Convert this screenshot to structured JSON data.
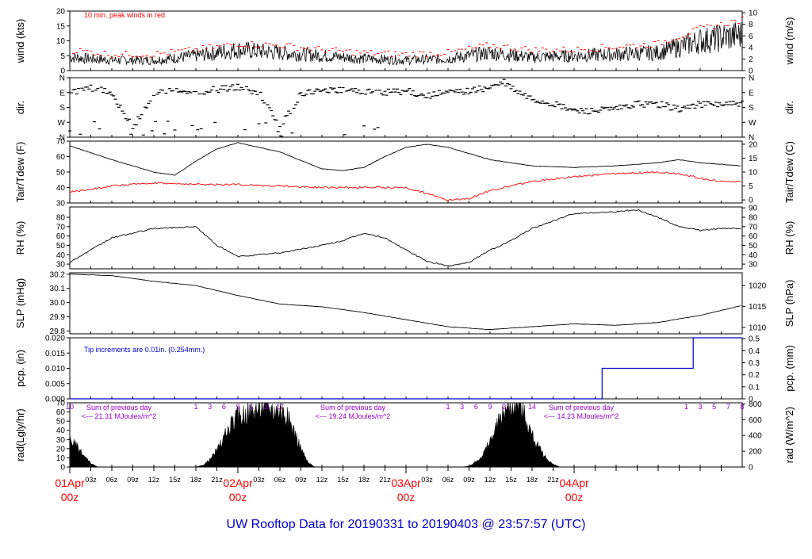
{
  "title": "UW Rooftop Data for 20190331  to  20190403 @ 23:57:57  (UTC)",
  "colors": {
    "title": "#0000cc",
    "peak": "#ff0000",
    "dew": "#ff0000",
    "pcp": "#0000cc",
    "note_rad": "#9900cc",
    "date": "#ff0000",
    "trace": "#000000"
  },
  "chart_data": [
    {
      "type": "line",
      "panel": "wind",
      "ylabel_left": "wind (kts)",
      "ylabel_right": "wind (m/s)",
      "ylim": [
        0,
        20
      ],
      "yticks_left": [
        "0",
        "5",
        "10",
        "15",
        "20"
      ],
      "yticks_right": [
        "0",
        "2",
        "4",
        "6",
        "8",
        "10"
      ],
      "annotation": "10 min. peak winds in red",
      "series": [
        {
          "role": "wind",
          "x": [
            0,
            6,
            12,
            18,
            24,
            30,
            36,
            42,
            48,
            54,
            60,
            66,
            72,
            78,
            84,
            90,
            96
          ],
          "y": [
            4.5,
            3.5,
            3.5,
            5,
            7,
            6,
            5,
            4,
            3.5,
            4,
            6,
            4.5,
            5,
            5.5,
            6,
            10,
            12
          ]
        },
        {
          "role": "peak",
          "x": [
            0,
            6,
            12,
            18,
            24,
            30,
            36,
            42,
            48,
            54,
            60,
            66,
            72,
            78,
            84,
            90,
            96
          ],
          "y": [
            7,
            5.5,
            5.5,
            7,
            9,
            8.5,
            7,
            6,
            5.5,
            6,
            8.5,
            7,
            7,
            8,
            9,
            14,
            17
          ]
        }
      ]
    },
    {
      "type": "scatter",
      "panel": "dir",
      "ylabel_left": "dir.",
      "ylabel_right": "dir.",
      "yticks_left": [
        "N",
        "W",
        "S",
        "E",
        "N"
      ],
      "yticks_right": [
        "N",
        "W",
        "S",
        "E",
        "N"
      ],
      "ylim": [
        0,
        360
      ],
      "x": [
        0,
        3,
        6,
        9,
        12,
        15,
        18,
        21,
        24,
        27,
        30,
        33,
        36,
        39,
        42,
        45,
        48,
        51,
        54,
        57,
        60,
        62,
        64,
        66,
        69,
        72,
        75,
        78,
        81,
        84,
        87,
        90,
        93,
        96
      ],
      "y": [
        270,
        300,
        270,
        60,
        260,
        280,
        270,
        290,
        300,
        270,
        60,
        260,
        290,
        280,
        280,
        270,
        280,
        250,
        270,
        280,
        300,
        330,
        270,
        230,
        200,
        160,
        160,
        170,
        200,
        200,
        170,
        200,
        200,
        200
      ]
    },
    {
      "type": "line",
      "panel": "temp",
      "ylabel_left": "Tair/Tdew (F)",
      "ylabel_right": "Tair/Tdew (C)",
      "ylim": [
        30,
        70
      ],
      "yticks_left": [
        "30",
        "40",
        "50",
        "60",
        "70"
      ],
      "yticks_right": [
        "0",
        "5",
        "10",
        "15",
        "20"
      ],
      "series": [
        {
          "role": "tair",
          "x": [
            0,
            6,
            12,
            15,
            18,
            21,
            24,
            27,
            30,
            36,
            39,
            42,
            45,
            48,
            51,
            54,
            60,
            66,
            72,
            78,
            84,
            87,
            90,
            93,
            96
          ],
          "y": [
            67,
            58,
            50,
            48,
            57,
            65,
            69,
            66,
            63,
            52,
            51,
            53,
            60,
            66,
            68,
            66,
            58,
            54,
            53,
            54,
            56,
            58,
            56,
            55,
            54
          ]
        },
        {
          "role": "tdew",
          "x": [
            0,
            6,
            12,
            18,
            24,
            30,
            36,
            42,
            48,
            51,
            54,
            57,
            60,
            66,
            72,
            78,
            84,
            87,
            90,
            93,
            96
          ],
          "y": [
            37,
            41,
            43,
            42,
            42,
            41,
            40,
            40,
            40,
            36,
            32,
            33,
            38,
            44,
            47,
            49,
            50,
            49,
            46,
            44,
            44
          ]
        }
      ]
    },
    {
      "type": "line",
      "panel": "rh",
      "ylabel_left": "RH (%)",
      "ylabel_right": "RH (%)",
      "ylim": [
        25,
        91
      ],
      "yticks_left": [
        "30",
        "40",
        "50",
        "60",
        "70",
        "80"
      ],
      "yticks_right": [
        "30",
        "40",
        "50",
        "60",
        "70",
        "80",
        "90"
      ],
      "x": [
        0,
        6,
        12,
        18,
        21,
        24,
        30,
        36,
        39,
        42,
        45,
        48,
        51,
        54,
        57,
        60,
        63,
        66,
        72,
        78,
        81,
        84,
        87,
        90,
        93,
        96
      ],
      "y": [
        32,
        58,
        68,
        70,
        50,
        38,
        42,
        50,
        55,
        63,
        58,
        45,
        33,
        28,
        32,
        45,
        55,
        68,
        84,
        86,
        88,
        80,
        70,
        66,
        68,
        68
      ]
    },
    {
      "type": "line",
      "panel": "slp",
      "ylabel_left": "SLP (inHg)",
      "ylabel_right": "SLP (hPa)",
      "ylim": [
        29.78,
        30.21
      ],
      "yticks_left": [
        "29.8",
        "29.9",
        "30.0",
        "30.1",
        "30.2"
      ],
      "yticks_right": [
        "1010",
        "1015",
        "1020"
      ],
      "x": [
        0,
        6,
        12,
        18,
        24,
        30,
        36,
        42,
        48,
        54,
        60,
        66,
        72,
        78,
        84,
        90,
        96
      ],
      "y": [
        30.2,
        30.19,
        30.15,
        30.12,
        30.05,
        29.99,
        29.97,
        29.93,
        29.88,
        29.83,
        29.81,
        29.83,
        29.85,
        29.84,
        29.86,
        29.91,
        29.98
      ]
    },
    {
      "type": "line",
      "panel": "pcp",
      "ylabel_left": "pcp. (in)",
      "ylabel_right": "pcp. (mm)",
      "ylim": [
        0,
        0.02
      ],
      "yticks_left": [
        "0.000",
        "0.005",
        "0.010",
        "0.015",
        "0.020"
      ],
      "yticks_right": [
        "0",
        "0.1",
        "0.2",
        "0.3",
        "0.4",
        "0.5"
      ],
      "annotation": "Tip increments are 0.01in. (0.254mm.)",
      "x": [
        0,
        76,
        76,
        89,
        89,
        96
      ],
      "y": [
        0,
        0,
        0.01,
        0.01,
        0.02,
        0.02
      ]
    },
    {
      "type": "area",
      "panel": "rad",
      "ylabel_left": "rad(Lgly/hr)",
      "ylabel_right": "rad (W/m^2)",
      "ylim": [
        0,
        70
      ],
      "yticks_left": [
        "0",
        "10",
        "20",
        "30",
        "40",
        "50",
        "60",
        "70"
      ],
      "yticks_right": [
        "0",
        "200",
        "400",
        "600",
        "800"
      ],
      "top_labels": [
        "10",
        "1",
        "3",
        "6",
        "9",
        "1",
        "3",
        "17",
        "1",
        "3",
        "6",
        "9",
        "2",
        "14",
        "1",
        "3",
        "5",
        "7",
        "8"
      ],
      "notes": [
        "Sum of previous day",
        "<--- 21.31 MJoules/m^2",
        "Sum of previous day",
        "<--- 19.24 MJoules/m^2",
        "Sum of previous day",
        "<--- 14.23 MJoules/m^2"
      ],
      "x": [
        0,
        1,
        2,
        3,
        4,
        18,
        19,
        20,
        21,
        22,
        23,
        24,
        25,
        26,
        27,
        28,
        29,
        30,
        31,
        32,
        33,
        34,
        35,
        36,
        37,
        38,
        39,
        40,
        41,
        42,
        43,
        44,
        45,
        46,
        47,
        48,
        49,
        50,
        51,
        52,
        53,
        54,
        55,
        56,
        57,
        58,
        59,
        60,
        61,
        62,
        63,
        64,
        65,
        66,
        67,
        68,
        69,
        70,
        71,
        72,
        73,
        74,
        75,
        76,
        77,
        78,
        79,
        80,
        81,
        82,
        83,
        84,
        85,
        86,
        87,
        88,
        89,
        90,
        91,
        92,
        93,
        94,
        95,
        96
      ],
      "y": [
        31,
        22,
        12,
        4,
        0,
        0,
        2,
        8,
        18,
        32,
        45,
        55,
        58,
        60,
        65,
        68,
        62,
        64,
        55,
        40,
        20,
        5,
        0,
        0,
        0,
        0,
        0,
        0,
        0,
        0,
        0,
        0,
        0,
        0,
        0,
        0,
        0,
        0,
        0,
        0,
        0,
        0,
        0,
        0,
        1,
        6,
        14,
        28,
        45,
        60,
        68,
        72,
        55,
        35,
        20,
        10,
        3,
        0,
        0,
        0,
        0,
        0,
        0,
        0,
        0,
        0,
        0,
        0,
        0,
        0,
        0,
        0,
        0,
        0,
        0,
        0,
        0,
        0,
        0,
        0,
        0,
        0,
        0,
        0
      ]
    }
  ],
  "x_axis": {
    "hour_ticks": [
      "03z",
      "06z",
      "09z",
      "12z",
      "15z",
      "18z",
      "21z",
      "03z",
      "06z",
      "09z",
      "12z",
      "15z",
      "18z",
      "21z",
      "03z",
      "06z",
      "09z",
      "12z",
      "15z",
      "18z",
      "21z"
    ],
    "day_labels": [
      {
        "date": "01Apr",
        "time": "00z"
      },
      {
        "date": "02Apr",
        "time": "00z"
      },
      {
        "date": "03Apr",
        "time": "00z"
      },
      {
        "date": "04Apr",
        "time": "00z"
      }
    ]
  }
}
